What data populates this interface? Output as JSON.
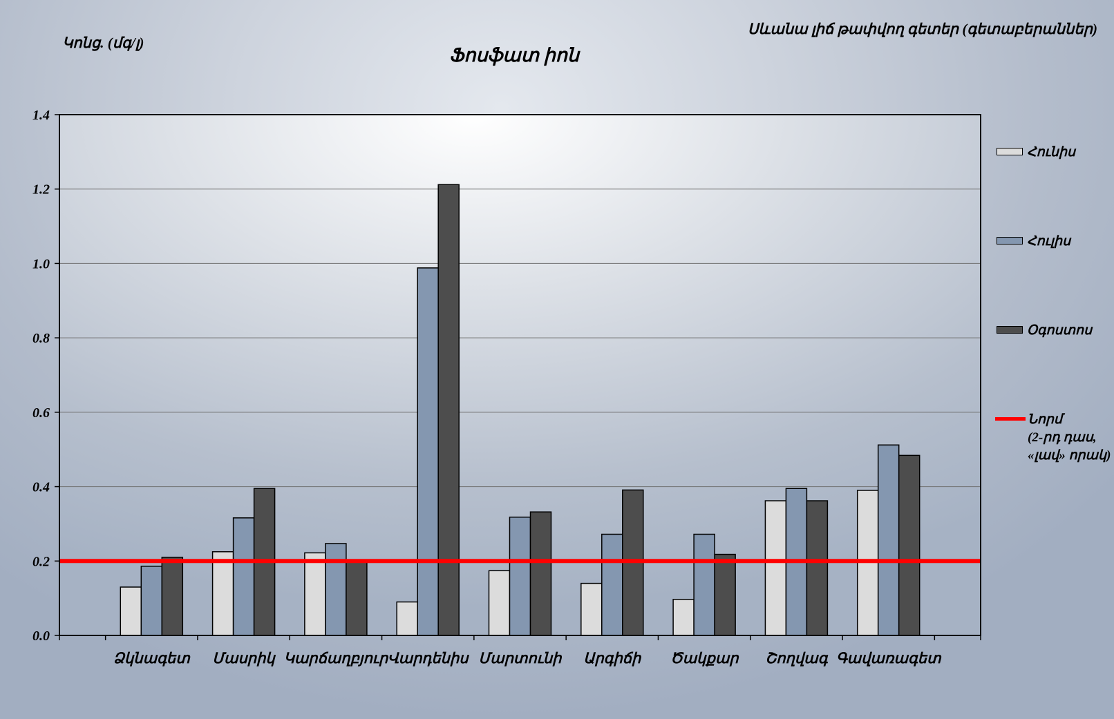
{
  "header": {
    "title": "Ֆոսֆատ իոն",
    "ylabel": "Կոնց. (մգ/լ)",
    "top_right": "Սևանա լիճ թափվող գետեր (գետաբերաններ)"
  },
  "colors": {
    "series": [
      "#dcdcdc",
      "#8497b0",
      "#4d4d4d"
    ],
    "norm": "#ff0000",
    "grid": "#707070"
  },
  "chart_data": {
    "type": "bar",
    "categories": [
      "Ձկնագետ",
      "Մասրիկ",
      "Կարճաղբյուր",
      "Վարդենիս",
      "Մարտունի",
      "Արգիճի",
      "Ծակքար",
      "Շողվագ",
      "Գավառագետ"
    ],
    "series": [
      {
        "name": "Հունիս",
        "values": [
          0.13,
          0.225,
          0.222,
          0.09,
          0.174,
          0.14,
          0.097,
          0.362,
          0.39
        ]
      },
      {
        "name": "Հուլիս",
        "values": [
          0.186,
          0.316,
          0.247,
          0.988,
          0.318,
          0.272,
          0.272,
          0.395,
          0.512
        ]
      },
      {
        "name": "Օգոստոս",
        "values": [
          0.21,
          0.395,
          0.2,
          1.212,
          0.332,
          0.391,
          0.218,
          0.362,
          0.484
        ]
      }
    ],
    "norm": {
      "name": "Նորմ\n(2-րդ դաս,\n«լավ» որակ)",
      "value": 0.2
    },
    "ylim": [
      0,
      1.4
    ],
    "yticks": [
      "0.0",
      "0.2",
      "0.4",
      "0.6",
      "0.8",
      "1.0",
      "1.2",
      "1.4"
    ],
    "grid": true,
    "legend_position": "right"
  }
}
